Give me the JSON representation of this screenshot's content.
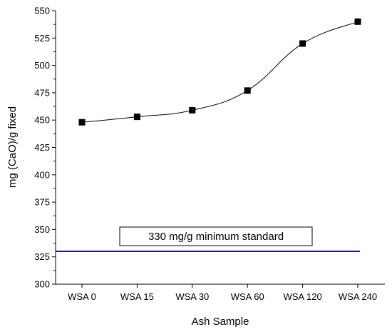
{
  "chart_data": {
    "type": "line",
    "title": "",
    "xlabel": "Ash Sample",
    "ylabel": "mg (CaO)/g fixed",
    "categories": [
      "WSA 0",
      "WSA 15",
      "WSA 30",
      "WSA 60",
      "WSA 120",
      "WSA 240"
    ],
    "series": [
      {
        "values": [
          448,
          453,
          459,
          477,
          520,
          540
        ],
        "color": "#000000",
        "marker": "square"
      }
    ],
    "ylim": [
      300,
      550
    ],
    "yticks": [
      "300",
      "325",
      "350",
      "375",
      "400",
      "425",
      "450",
      "475",
      "500",
      "525",
      "550"
    ],
    "reference_line": {
      "value": 330,
      "color": "#1a1aa8",
      "label": "330 mg/g minimum standard"
    },
    "grid": false,
    "legend": "none"
  }
}
